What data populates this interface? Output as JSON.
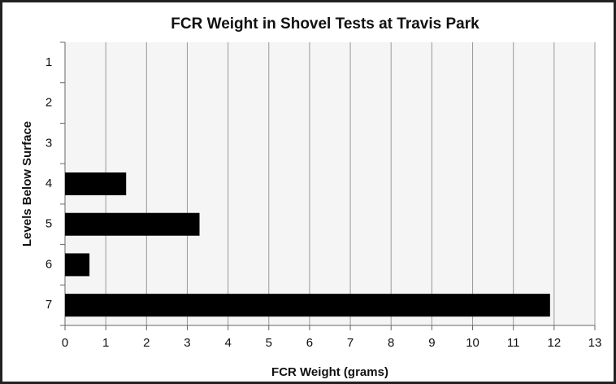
{
  "chart_data": {
    "type": "barh",
    "title": "FCR Weight in Shovel Tests at Travis Park",
    "x_label": "FCR Weight (grams)",
    "y_label": "Levels Below Surface",
    "categories": [
      "1",
      "2",
      "3",
      "4",
      "5",
      "6",
      "7"
    ],
    "values": [
      0,
      0,
      0,
      1.5,
      3.3,
      0.6,
      11.9
    ],
    "color": "#000000",
    "xlim": [
      0,
      13
    ],
    "xticks": [
      0,
      1,
      2,
      3,
      4,
      5,
      6,
      7,
      8,
      9,
      10,
      11,
      12,
      13
    ],
    "grid": true
  }
}
